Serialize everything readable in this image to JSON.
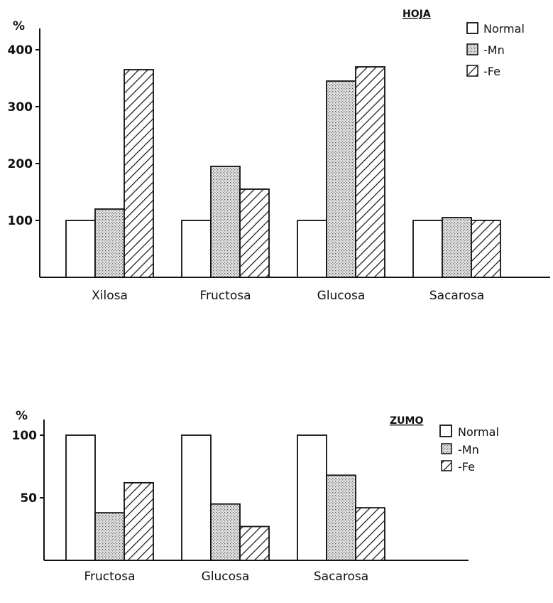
{
  "chart_data": [
    {
      "type": "bar",
      "title": "HOJA",
      "ylabel": "%",
      "ylim": [
        0,
        400
      ],
      "yticks": [
        "100",
        "200",
        "300",
        "400"
      ],
      "categories": [
        "Xilosa",
        "Fructosa",
        "Glucosa",
        "Sacarosa"
      ],
      "series": [
        {
          "name": "Normal",
          "values": [
            100,
            100,
            100,
            100
          ]
        },
        {
          "name": "-Mn",
          "values": [
            120,
            195,
            345,
            105
          ]
        },
        {
          "name": "-Fe",
          "values": [
            365,
            155,
            370,
            100
          ]
        }
      ]
    },
    {
      "type": "bar",
      "title": "ZUMO",
      "ylabel": "%",
      "ylim": [
        0,
        100
      ],
      "yticks": [
        "50",
        "100"
      ],
      "categories": [
        "Fructosa",
        "Glucosa",
        "Sacarosa"
      ],
      "series": [
        {
          "name": "Normal",
          "values": [
            100,
            100,
            100
          ]
        },
        {
          "name": "-Mn",
          "values": [
            38,
            45,
            68
          ]
        },
        {
          "name": "-Fe",
          "values": [
            62,
            27,
            42
          ]
        }
      ]
    }
  ]
}
